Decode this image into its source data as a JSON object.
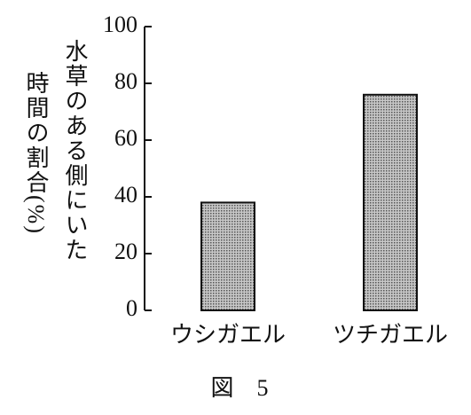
{
  "chart_data": {
    "type": "bar",
    "y_label": [
      "水草のある側にいた",
      "時間の割合(%)"
    ],
    "categories": [
      "ウシガエル",
      "ツチガエル"
    ],
    "values": [
      38,
      76
    ],
    "color": "#9a9a9a",
    "ylim": [
      0,
      100
    ],
    "yticks": [
      0,
      20,
      40,
      60,
      80,
      100
    ],
    "caption": "図　5"
  }
}
